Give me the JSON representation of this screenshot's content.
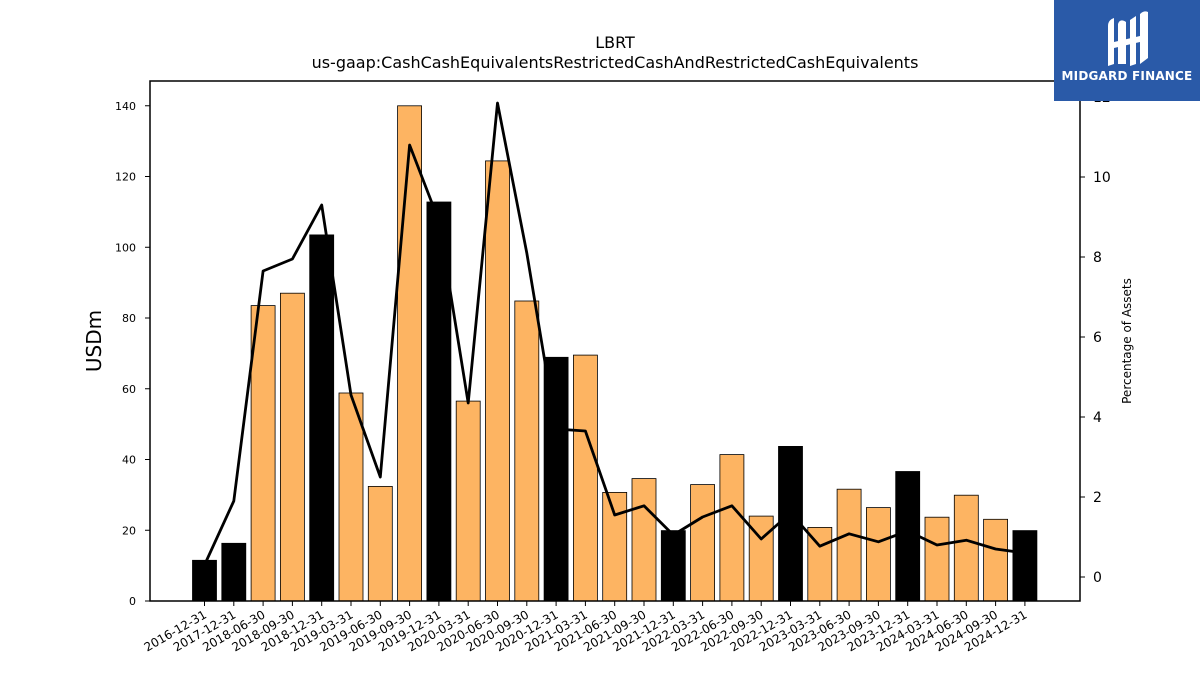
{
  "brand": {
    "name": "MIDGARD FINANCE",
    "bg_color": "#2a5aa8"
  },
  "chart_data": {
    "type": "bar",
    "title": "LBRT",
    "subtitle": "us-gaap:CashCashEquivalentsRestrictedCashAndRestrictedCashEquivalents",
    "ylabel": "USDm",
    "y2label": "Percentage of Assets",
    "ylim": [
      0,
      147
    ],
    "y2lim": [
      -0.6,
      12.4
    ],
    "yticks": [
      0,
      20,
      40,
      60,
      80,
      100,
      120,
      140
    ],
    "y2ticks": [
      0,
      2,
      4,
      6,
      8,
      10,
      12
    ],
    "grid": false,
    "categories": [
      "2016-12-31",
      "2017-12-31",
      "2018-06-30",
      "2018-09-30",
      "2018-12-31",
      "2019-03-31",
      "2019-06-30",
      "2019-09-30",
      "2019-12-31",
      "2020-03-31",
      "2020-06-30",
      "2020-09-30",
      "2020-12-31",
      "2021-03-31",
      "2021-06-30",
      "2021-09-30",
      "2021-12-31",
      "2022-03-31",
      "2022-06-30",
      "2022-09-30",
      "2022-12-31",
      "2023-03-31",
      "2023-06-30",
      "2023-09-30",
      "2023-12-31",
      "2024-03-31",
      "2024-06-30",
      "2024-09-30",
      "2024-12-31"
    ],
    "series": [
      {
        "type": "bar",
        "axis": "left",
        "values": [
          11.5,
          16.3,
          83.5,
          87.0,
          103.5,
          58.8,
          32.4,
          140.0,
          112.8,
          56.5,
          124.4,
          84.8,
          68.9,
          69.5,
          30.7,
          34.6,
          19.9,
          32.9,
          41.4,
          24.0,
          43.7,
          20.8,
          31.6,
          26.4,
          36.6,
          23.7,
          29.9,
          23.1,
          19.9
        ],
        "colors": [
          "#000000",
          "#000000",
          "#fdb462",
          "#fdb462",
          "#000000",
          "#fdb462",
          "#fdb462",
          "#fdb462",
          "#000000",
          "#fdb462",
          "#fdb462",
          "#fdb462",
          "#000000",
          "#fdb462",
          "#fdb462",
          "#fdb462",
          "#000000",
          "#fdb462",
          "#fdb462",
          "#fdb462",
          "#000000",
          "#fdb462",
          "#fdb462",
          "#fdb462",
          "#000000",
          "#fdb462",
          "#fdb462",
          "#fdb462",
          "#000000"
        ]
      },
      {
        "type": "line",
        "axis": "right",
        "color": "#000000",
        "values": [
          0.3,
          1.9,
          7.65,
          7.95,
          9.3,
          4.55,
          2.5,
          10.8,
          8.9,
          4.35,
          11.85,
          8.1,
          3.7,
          3.65,
          1.55,
          1.78,
          1.05,
          1.5,
          1.78,
          0.95,
          1.6,
          0.77,
          1.08,
          0.88,
          1.15,
          0.8,
          0.92,
          0.7,
          0.6
        ]
      }
    ]
  }
}
